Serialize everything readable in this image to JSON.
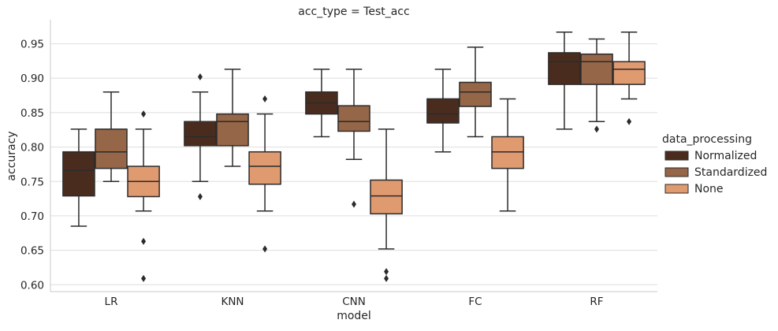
{
  "chart_data": {
    "type": "boxplot",
    "title": "acc_type = Test_acc",
    "xlabel": "model",
    "ylabel": "accuracy",
    "ylim": [
      0.59,
      0.985
    ],
    "yticks": [
      "0.60",
      "0.65",
      "0.70",
      "0.75",
      "0.80",
      "0.85",
      "0.90",
      "0.95"
    ],
    "grid": true,
    "categories": [
      "LR",
      "KNN",
      "CNN",
      "FC",
      "RF"
    ],
    "legend": {
      "title": "data_processing",
      "position": "right",
      "entries": [
        "Normalized",
        "Standardized",
        "None"
      ]
    },
    "series": [
      {
        "name": "Normalized",
        "color": "#4a2c1f",
        "boxes": [
          {
            "whislo": 0.685,
            "q1": 0.729,
            "med": 0.766,
            "q3": 0.793,
            "whishi": 0.826,
            "fliers": []
          },
          {
            "whislo": 0.75,
            "q1": 0.802,
            "med": 0.815,
            "q3": 0.837,
            "whishi": 0.88,
            "fliers": [
              0.902,
              0.728
            ]
          },
          {
            "whislo": 0.815,
            "q1": 0.848,
            "med": 0.864,
            "q3": 0.88,
            "whishi": 0.913,
            "fliers": []
          },
          {
            "whislo": 0.793,
            "q1": 0.835,
            "med": 0.848,
            "q3": 0.87,
            "whishi": 0.913,
            "fliers": []
          },
          {
            "whislo": 0.826,
            "q1": 0.891,
            "med": 0.924,
            "q3": 0.937,
            "whishi": 0.967,
            "fliers": []
          }
        ]
      },
      {
        "name": "Standardized",
        "color": "#956647",
        "boxes": [
          {
            "whislo": 0.75,
            "q1": 0.769,
            "med": 0.793,
            "q3": 0.826,
            "whishi": 0.88,
            "fliers": []
          },
          {
            "whislo": 0.772,
            "q1": 0.802,
            "med": 0.837,
            "q3": 0.848,
            "whishi": 0.913,
            "fliers": []
          },
          {
            "whislo": 0.782,
            "q1": 0.823,
            "med": 0.837,
            "q3": 0.86,
            "whishi": 0.913,
            "fliers": [
              0.717
            ]
          },
          {
            "whislo": 0.815,
            "q1": 0.859,
            "med": 0.88,
            "q3": 0.894,
            "whishi": 0.945,
            "fliers": []
          },
          {
            "whislo": 0.837,
            "q1": 0.891,
            "med": 0.924,
            "q3": 0.935,
            "whishi": 0.957,
            "fliers": [
              0.826
            ]
          }
        ]
      },
      {
        "name": "None",
        "color": "#e09a70",
        "boxes": [
          {
            "whislo": 0.707,
            "q1": 0.728,
            "med": 0.75,
            "q3": 0.772,
            "whishi": 0.826,
            "fliers": [
              0.848,
              0.663,
              0.609
            ]
          },
          {
            "whislo": 0.707,
            "q1": 0.746,
            "med": 0.772,
            "q3": 0.793,
            "whishi": 0.848,
            "fliers": [
              0.87,
              0.652
            ]
          },
          {
            "whislo": 0.652,
            "q1": 0.703,
            "med": 0.729,
            "q3": 0.752,
            "whishi": 0.826,
            "fliers": [
              0.619,
              0.609
            ]
          },
          {
            "whislo": 0.707,
            "q1": 0.769,
            "med": 0.793,
            "q3": 0.815,
            "whishi": 0.87,
            "fliers": []
          },
          {
            "whislo": 0.87,
            "q1": 0.891,
            "med": 0.913,
            "q3": 0.924,
            "whishi": 0.967,
            "fliers": [
              0.837
            ]
          }
        ]
      }
    ]
  }
}
